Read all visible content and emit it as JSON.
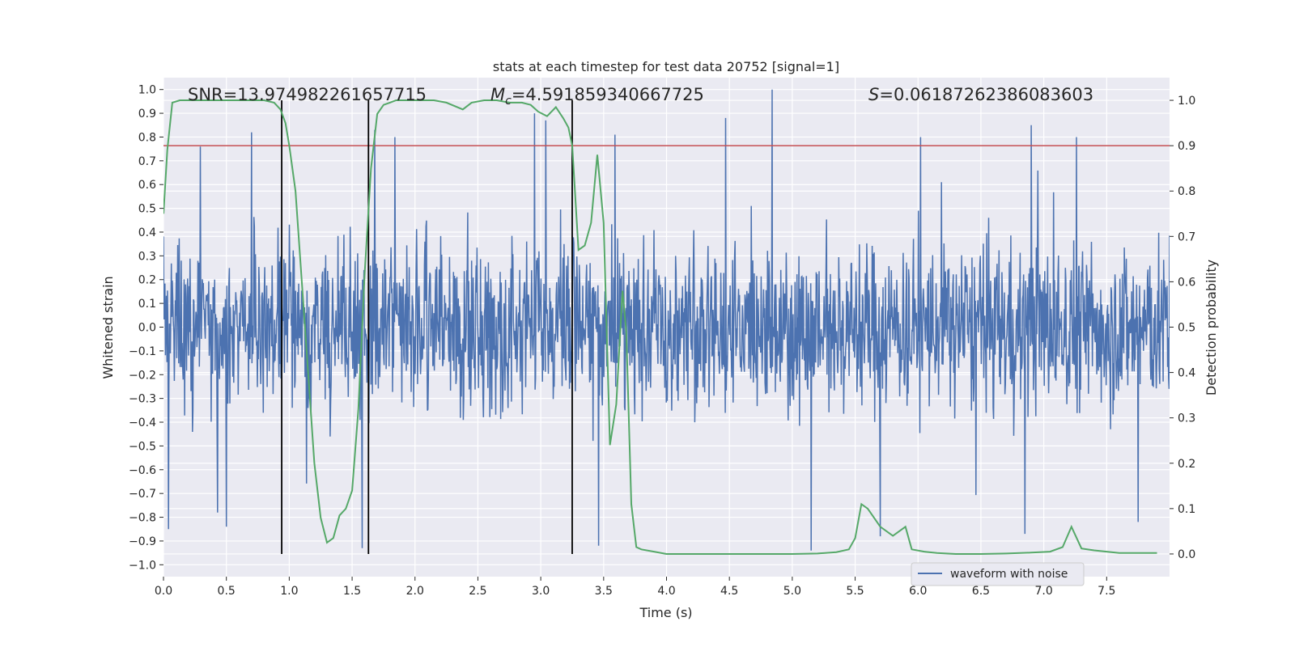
{
  "chart_data": {
    "type": "line",
    "title": "stats at each timestep for test data 20752 [signal=1]",
    "xlabel": "Time (s)",
    "ylabel_left": "Whitened strain",
    "ylabel_right": "Detection probability",
    "xlim": [
      0.0,
      8.0
    ],
    "ylim_left": [
      -1.05,
      1.05
    ],
    "ylim_right": [
      -0.05,
      1.05
    ],
    "x_ticks": [
      "0.0",
      "0.5",
      "1.0",
      "1.5",
      "2.0",
      "2.5",
      "3.0",
      "3.5",
      "4.0",
      "4.5",
      "5.0",
      "5.5",
      "6.0",
      "6.5",
      "7.0",
      "7.5"
    ],
    "y_ticks_left": [
      "-1.0",
      "-0.9",
      "-0.8",
      "-0.7",
      "-0.6",
      "-0.5",
      "-0.4",
      "-0.3",
      "-0.2",
      "-0.1",
      "0.0",
      "0.1",
      "0.2",
      "0.3",
      "0.4",
      "0.5",
      "0.6",
      "0.7",
      "0.8",
      "0.9",
      "1.0"
    ],
    "y_ticks_right": [
      "0.0",
      "0.1",
      "0.2",
      "0.3",
      "0.4",
      "0.5",
      "0.6",
      "0.7",
      "0.8",
      "0.9",
      "1.0"
    ],
    "grid": true,
    "legend": {
      "placement": "lower-right",
      "entries": [
        "waveform with noise"
      ]
    },
    "annotations": {
      "snr": "SNR=13.974982261657715",
      "mc_symbol": "M",
      "mc_sub": "c",
      "mc_value": "=4.591859340667725",
      "s_symbol": "S",
      "s_value": "=0.06187262386083603"
    },
    "threshold_probability": 0.9,
    "vertical_markers_time": [
      0.94,
      1.63,
      3.25
    ],
    "series": [
      {
        "name": "waveform with noise",
        "color": "#4c72b0",
        "axis": "left",
        "x_range": [
          0.0,
          8.0
        ],
        "n_samples": 2048,
        "envelope_typical": 0.33,
        "notable_peaks": [
          {
            "x": 0.7,
            "y": 0.82
          },
          {
            "x": 1.68,
            "y": 0.83
          },
          {
            "x": 1.84,
            "y": 0.8
          },
          {
            "x": 2.95,
            "y": 0.9
          },
          {
            "x": 3.04,
            "y": 0.87
          },
          {
            "x": 3.59,
            "y": 0.81
          },
          {
            "x": 4.47,
            "y": 0.88
          },
          {
            "x": 4.84,
            "y": 1.0
          },
          {
            "x": 6.02,
            "y": 0.8
          },
          {
            "x": 6.9,
            "y": 0.85
          },
          {
            "x": 7.26,
            "y": 0.8
          }
        ],
        "notable_troughs": [
          {
            "x": 0.04,
            "y": -0.85
          },
          {
            "x": 0.5,
            "y": -0.84
          },
          {
            "x": 1.58,
            "y": -0.93
          },
          {
            "x": 3.46,
            "y": -0.92
          },
          {
            "x": 5.15,
            "y": -0.94
          },
          {
            "x": 5.7,
            "y": -0.88
          },
          {
            "x": 6.85,
            "y": -0.87
          },
          {
            "x": 7.75,
            "y": -0.82
          }
        ]
      },
      {
        "name": "",
        "color": "#55a868",
        "axis": "right",
        "x": [
          0.0,
          0.03,
          0.07,
          0.13,
          0.2,
          0.3,
          0.4,
          0.5,
          0.6,
          0.7,
          0.8,
          0.88,
          0.93,
          0.97,
          1.0,
          1.05,
          1.1,
          1.15,
          1.2,
          1.25,
          1.3,
          1.35,
          1.4,
          1.45,
          1.5,
          1.55,
          1.6,
          1.65,
          1.7,
          1.75,
          1.8,
          1.85,
          1.95,
          2.05,
          2.15,
          2.25,
          2.38,
          2.45,
          2.55,
          2.65,
          2.75,
          2.85,
          2.92,
          2.98,
          3.05,
          3.12,
          3.18,
          3.22,
          3.25,
          3.3,
          3.35,
          3.4,
          3.45,
          3.5,
          3.55,
          3.6,
          3.65,
          3.68,
          3.72,
          3.76,
          3.8,
          3.9,
          4.0,
          4.2,
          4.5,
          4.8,
          5.0,
          5.2,
          5.35,
          5.45,
          5.5,
          5.55,
          5.6,
          5.7,
          5.8,
          5.9,
          5.95,
          6.05,
          6.15,
          6.3,
          6.5,
          6.7,
          6.9,
          7.05,
          7.15,
          7.22,
          7.3,
          7.4,
          7.6,
          7.9
        ],
        "y": [
          0.75,
          0.89,
          0.995,
          1.0,
          1.0,
          1.0,
          1.0,
          1.0,
          1.0,
          1.0,
          1.0,
          0.995,
          0.98,
          0.95,
          0.9,
          0.8,
          0.6,
          0.4,
          0.2,
          0.08,
          0.025,
          0.035,
          0.085,
          0.1,
          0.14,
          0.32,
          0.62,
          0.85,
          0.97,
          0.99,
          0.995,
          1.0,
          1.0,
          1.0,
          1.0,
          0.995,
          0.98,
          0.995,
          1.0,
          1.0,
          0.995,
          0.995,
          0.99,
          0.975,
          0.965,
          0.985,
          0.96,
          0.94,
          0.9,
          0.67,
          0.68,
          0.73,
          0.88,
          0.73,
          0.24,
          0.33,
          0.58,
          0.49,
          0.11,
          0.015,
          0.01,
          0.005,
          0.0,
          0.0,
          0.0,
          0.0,
          0.0,
          0.001,
          0.004,
          0.01,
          0.035,
          0.11,
          0.1,
          0.06,
          0.04,
          0.06,
          0.01,
          0.005,
          0.002,
          0.0,
          0.0,
          0.001,
          0.003,
          0.005,
          0.015,
          0.06,
          0.012,
          0.008,
          0.002,
          0.002
        ]
      }
    ]
  }
}
